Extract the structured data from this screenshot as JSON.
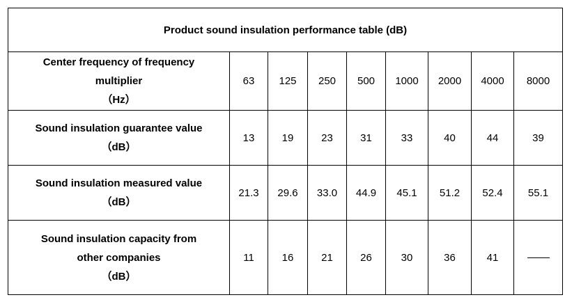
{
  "table": {
    "title": "Product sound insulation performance table (dB)",
    "header": {
      "label_lines": [
        "Center frequency of frequency",
        "multiplier",
        "（Hz）"
      ],
      "values": [
        "63",
        "125",
        "250",
        "500",
        "1000",
        "2000",
        "4000",
        "8000"
      ]
    },
    "rows": [
      {
        "label_lines": [
          "Sound insulation guarantee value",
          "（dB）"
        ],
        "values": [
          "13",
          "19",
          "23",
          "31",
          "33",
          "40",
          "44",
          "39"
        ]
      },
      {
        "label_lines": [
          "Sound insulation measured value",
          "（dB）"
        ],
        "values": [
          "21.3",
          "29.6",
          "33.0",
          "44.9",
          "45.1",
          "51.2",
          "52.4",
          "55.1"
        ]
      },
      {
        "label_lines": [
          "Sound insulation capacity from",
          "other companies",
          "（dB）"
        ],
        "values": [
          "11",
          "16",
          "21",
          "26",
          "30",
          "36",
          "41",
          ""
        ],
        "empty_marker": "dash"
      }
    ]
  }
}
